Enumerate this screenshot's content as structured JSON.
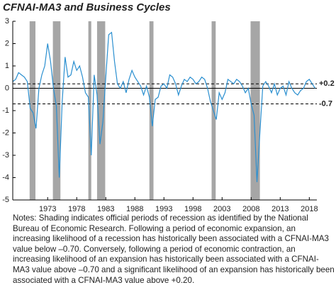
{
  "chart_data": {
    "type": "line",
    "title": "CFNAI-MA3 and Business Cycles",
    "x": [
      1967.0,
      1967.5,
      1968.0,
      1968.5,
      1969.0,
      1969.5,
      1970.0,
      1970.5,
      1971.0,
      1971.5,
      1972.0,
      1972.5,
      1973.0,
      1973.5,
      1974.0,
      1974.5,
      1975.0,
      1975.5,
      1976.0,
      1976.5,
      1977.0,
      1977.5,
      1978.0,
      1978.5,
      1979.0,
      1979.5,
      1980.0,
      1980.5,
      1981.0,
      1981.5,
      1982.0,
      1982.5,
      1983.0,
      1983.5,
      1984.0,
      1984.5,
      1985.0,
      1985.5,
      1986.0,
      1986.5,
      1987.0,
      1987.5,
      1988.0,
      1988.5,
      1989.0,
      1989.5,
      1990.0,
      1990.5,
      1991.0,
      1991.5,
      1992.0,
      1992.5,
      1993.0,
      1993.5,
      1994.0,
      1994.5,
      1995.0,
      1995.5,
      1996.0,
      1996.5,
      1997.0,
      1997.5,
      1998.0,
      1998.5,
      1999.0,
      1999.5,
      2000.0,
      2000.5,
      2001.0,
      2001.5,
      2002.0,
      2002.5,
      2003.0,
      2003.5,
      2004.0,
      2004.5,
      2005.0,
      2005.5,
      2006.0,
      2006.5,
      2007.0,
      2007.5,
      2008.0,
      2008.5,
      2009.0,
      2009.5,
      2010.0,
      2010.5,
      2011.0,
      2011.5,
      2012.0,
      2012.5,
      2013.0,
      2013.5,
      2014.0,
      2014.5,
      2015.0,
      2015.5,
      2016.0,
      2016.5,
      2017.0,
      2017.5,
      2018.0,
      2018.5,
      2019.0
    ],
    "series": [
      {
        "name": "CFNAI-MA3",
        "color": "#2a8fd0",
        "values": [
          0.3,
          0.4,
          0.7,
          0.6,
          0.5,
          0.3,
          -0.9,
          -1.1,
          -1.8,
          0.0,
          0.6,
          1.0,
          2.0,
          1.2,
          0.0,
          -0.8,
          -4.0,
          -0.6,
          1.4,
          0.5,
          0.6,
          1.2,
          0.8,
          1.0,
          0.5,
          -0.2,
          -0.4,
          -3.0,
          0.6,
          -0.3,
          -2.5,
          -1.5,
          0.5,
          2.4,
          2.5,
          1.2,
          0.2,
          0.0,
          0.3,
          -0.2,
          0.4,
          0.8,
          0.5,
          0.3,
          0.1,
          -0.3,
          0.1,
          -0.4,
          -1.7,
          -0.5,
          -0.4,
          0.1,
          0.2,
          0.0,
          0.6,
          0.5,
          0.2,
          -0.3,
          0.1,
          0.4,
          0.3,
          0.5,
          0.4,
          0.2,
          0.3,
          0.5,
          0.4,
          0.0,
          -0.6,
          -1.0,
          -1.4,
          -0.2,
          -0.5,
          -0.2,
          0.4,
          0.3,
          0.2,
          0.4,
          0.3,
          0.1,
          -0.2,
          0.0,
          -0.7,
          -1.2,
          -4.2,
          -2.0,
          0.1,
          0.3,
          0.1,
          -0.2,
          0.2,
          -0.3,
          0.0,
          0.1,
          -0.3,
          0.3,
          0.0,
          -0.2,
          -0.3,
          -0.1,
          0.0,
          0.3,
          0.4,
          0.2,
          0.0
        ]
      }
    ],
    "recessions": [
      [
        1969.9,
        1970.9
      ],
      [
        1973.9,
        1975.2
      ],
      [
        1980.0,
        1980.5
      ],
      [
        1981.5,
        1982.9
      ],
      [
        1990.5,
        1991.2
      ],
      [
        2001.2,
        2001.9
      ],
      [
        2007.9,
        2009.5
      ]
    ],
    "reference_lines": [
      {
        "value": 0.2,
        "label": "+0.2"
      },
      {
        "value": -0.7,
        "label": "-0.7"
      }
    ],
    "xlim": [
      1967,
      2019.3
    ],
    "xticks": [
      1973,
      1978,
      1983,
      1988,
      1993,
      1998,
      2003,
      2008,
      2013,
      2018
    ],
    "ylim": [
      -5,
      3
    ],
    "yticks": [
      -5,
      -4,
      -3,
      -2,
      -1,
      0,
      1,
      2,
      3
    ],
    "note": "Notes: Shading indicates official periods of recession as identified by the National Bureau of Economic Research. Following a period of economic expansion, an increasing likelihood of a recession has historically been associated with a CFNAI-MA3 value below –0.70. Conversely, following a period of economic contraction, an increasing likelihood of an expansion has historically been associated with a CFNAI-MA3 value above –0.70 and a significant likelihood of an expansion has historically been associated with a CFNAI-MA3 value above +0.20."
  }
}
